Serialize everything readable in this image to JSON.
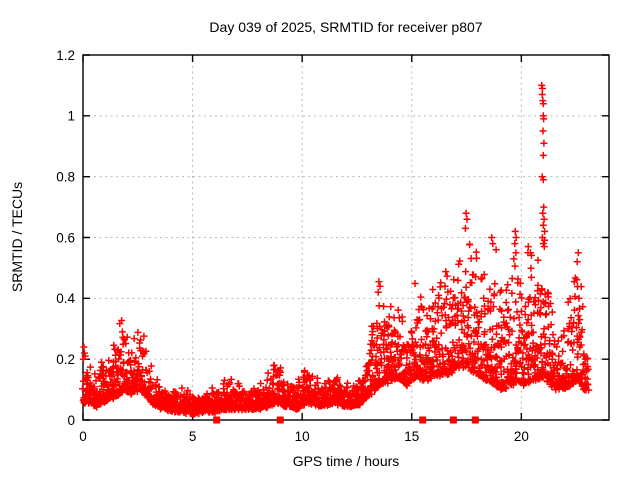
{
  "chart_data": {
    "type": "scatter",
    "title": "Day 039 of 2025, SRMTID for receiver p807",
    "xlabel": "GPS time / hours",
    "ylabel": "SRMTID / TECUs",
    "xlim": [
      0,
      24
    ],
    "ylim": [
      0,
      1.2
    ],
    "xticks": [
      0,
      5,
      10,
      15,
      20
    ],
    "xtick_labels": [
      "0",
      "5",
      "10",
      "15",
      "20"
    ],
    "yticks": [
      0,
      0.2,
      0.4,
      0.6,
      0.8,
      1,
      1.2
    ],
    "ytick_labels": [
      "0",
      "0.2",
      "0.4",
      "0.6",
      "0.8",
      "1",
      "1.2"
    ],
    "grid": {
      "show": true,
      "color": "#b9b9b9",
      "dash": "2 3.5"
    },
    "legend": "none",
    "marker": {
      "shape": "plus",
      "color": "#ff0000",
      "size": 7,
      "stroke_width": 1.5
    },
    "axis_squares": {
      "shape": "filled-square",
      "color": "#ff0000",
      "size": 7,
      "y": 0,
      "times": [
        6.1,
        9.0,
        15.5,
        16.9,
        17.9
      ]
    },
    "sample_rate_per_hour": 120,
    "time_range": [
      0,
      23.05
    ],
    "envelope": [
      [
        0.0,
        0.06,
        0.24
      ],
      [
        0.3,
        0.06,
        0.18
      ],
      [
        0.6,
        0.05,
        0.16
      ],
      [
        0.9,
        0.06,
        0.21
      ],
      [
        1.2,
        0.07,
        0.22
      ],
      [
        1.5,
        0.08,
        0.26
      ],
      [
        1.8,
        0.1,
        0.36
      ],
      [
        2.0,
        0.1,
        0.32
      ],
      [
        2.2,
        0.09,
        0.28
      ],
      [
        2.5,
        0.1,
        0.3
      ],
      [
        2.75,
        0.1,
        0.33
      ],
      [
        3.0,
        0.07,
        0.22
      ],
      [
        3.3,
        0.05,
        0.14
      ],
      [
        3.6,
        0.04,
        0.12
      ],
      [
        4.0,
        0.035,
        0.11
      ],
      [
        4.5,
        0.03,
        0.1
      ],
      [
        5.0,
        0.025,
        0.09
      ],
      [
        5.5,
        0.03,
        0.1
      ],
      [
        6.0,
        0.03,
        0.11
      ],
      [
        6.4,
        0.04,
        0.13
      ],
      [
        6.8,
        0.04,
        0.15
      ],
      [
        7.2,
        0.04,
        0.12
      ],
      [
        7.6,
        0.04,
        0.11
      ],
      [
        8.0,
        0.04,
        0.12
      ],
      [
        8.5,
        0.05,
        0.16
      ],
      [
        8.9,
        0.06,
        0.21
      ],
      [
        9.3,
        0.05,
        0.14
      ],
      [
        9.7,
        0.04,
        0.12
      ],
      [
        10.0,
        0.05,
        0.16
      ],
      [
        10.3,
        0.06,
        0.19
      ],
      [
        10.7,
        0.05,
        0.14
      ],
      [
        11.1,
        0.05,
        0.15
      ],
      [
        11.5,
        0.06,
        0.16
      ],
      [
        11.9,
        0.05,
        0.13
      ],
      [
        12.3,
        0.05,
        0.12
      ],
      [
        12.7,
        0.06,
        0.15
      ],
      [
        13.0,
        0.08,
        0.22
      ],
      [
        13.3,
        0.1,
        0.34
      ],
      [
        13.6,
        0.12,
        0.46
      ],
      [
        14.0,
        0.13,
        0.39
      ],
      [
        14.4,
        0.14,
        0.43
      ],
      [
        14.8,
        0.12,
        0.36
      ],
      [
        15.2,
        0.15,
        0.46
      ],
      [
        15.6,
        0.13,
        0.42
      ],
      [
        16.0,
        0.15,
        0.48
      ],
      [
        16.4,
        0.15,
        0.5
      ],
      [
        16.8,
        0.16,
        0.48
      ],
      [
        17.2,
        0.18,
        0.55
      ],
      [
        17.5,
        0.18,
        0.66
      ],
      [
        17.8,
        0.16,
        0.6
      ],
      [
        18.1,
        0.15,
        0.55
      ],
      [
        18.5,
        0.13,
        0.55
      ],
      [
        18.8,
        0.12,
        0.58
      ],
      [
        19.2,
        0.1,
        0.45
      ],
      [
        19.6,
        0.12,
        0.52
      ],
      [
        19.8,
        0.13,
        0.58
      ],
      [
        20.1,
        0.12,
        0.45
      ],
      [
        20.4,
        0.13,
        0.55
      ],
      [
        20.8,
        0.13,
        0.58
      ],
      [
        21.0,
        0.15,
        0.68
      ],
      [
        21.3,
        0.12,
        0.5
      ],
      [
        21.6,
        0.1,
        0.28
      ],
      [
        22.0,
        0.11,
        0.33
      ],
      [
        22.3,
        0.12,
        0.45
      ],
      [
        22.6,
        0.14,
        0.53
      ],
      [
        22.9,
        0.1,
        0.35
      ],
      [
        23.05,
        0.1,
        0.25
      ]
    ],
    "outliers": [
      [
        20.93,
        1.1
      ],
      [
        20.96,
        1.09
      ],
      [
        20.95,
        1.07
      ],
      [
        20.98,
        1.05
      ],
      [
        21.0,
        1.04
      ],
      [
        21.0,
        1.0
      ],
      [
        21.02,
        0.99
      ],
      [
        20.99,
        0.95
      ],
      [
        21.03,
        0.91
      ],
      [
        21.0,
        0.87
      ],
      [
        20.95,
        0.8
      ],
      [
        21.0,
        0.79
      ],
      [
        21.02,
        0.7
      ],
      [
        20.98,
        0.68
      ],
      [
        21.04,
        0.66
      ],
      [
        21.0,
        0.64
      ],
      [
        21.06,
        0.62
      ],
      [
        20.96,
        0.6
      ],
      [
        21.0,
        0.58
      ],
      [
        21.05,
        0.57
      ],
      [
        19.72,
        0.62
      ],
      [
        19.76,
        0.6
      ],
      [
        19.7,
        0.58
      ],
      [
        19.75,
        0.55
      ],
      [
        20.32,
        0.57
      ],
      [
        20.42,
        0.55
      ],
      [
        20.3,
        0.55
      ],
      [
        17.48,
        0.68
      ],
      [
        17.52,
        0.66
      ],
      [
        17.45,
        0.63
      ],
      [
        18.65,
        0.6
      ],
      [
        18.7,
        0.58
      ],
      [
        18.85,
        0.56
      ],
      [
        13.5,
        0.455
      ],
      [
        13.55,
        0.44
      ],
      [
        13.47,
        0.42
      ],
      [
        22.6,
        0.55
      ],
      [
        22.55,
        0.52
      ],
      [
        0.04,
        0.24
      ],
      [
        0.07,
        0.22
      ],
      [
        0.1,
        0.21
      ]
    ],
    "seed": 2025
  },
  "colors": {
    "data": "#ff0000",
    "text": "#000000",
    "border": "#000000",
    "grid": "#b9b9b9",
    "background": "#ffffff"
  }
}
